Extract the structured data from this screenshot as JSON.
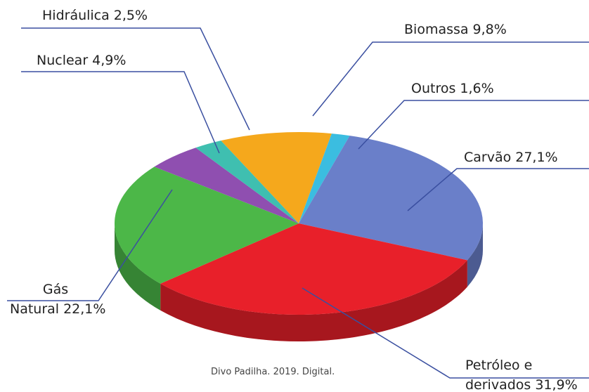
{
  "chart_data": {
    "type": "pie",
    "categories": [
      "Biomassa",
      "Outros",
      "Carvão",
      "Petróleo e derivados",
      "Gás Natural",
      "Nuclear",
      "Hidráulica"
    ],
    "values": [
      9.8,
      1.6,
      27.1,
      31.9,
      22.1,
      4.9,
      2.5
    ],
    "value_labels": [
      "9,8%",
      "1,6%",
      "27,1%",
      "31,9%",
      "22,1%",
      "4,9%",
      "2,5%"
    ],
    "colors": [
      "#f5a81c",
      "#3bbde0",
      "#6a7fc9",
      "#e8202a",
      "#4cb748",
      "#8f4fb0",
      "#3fbfb0"
    ],
    "source": "Divo Padilha. 2019. Digital."
  }
}
